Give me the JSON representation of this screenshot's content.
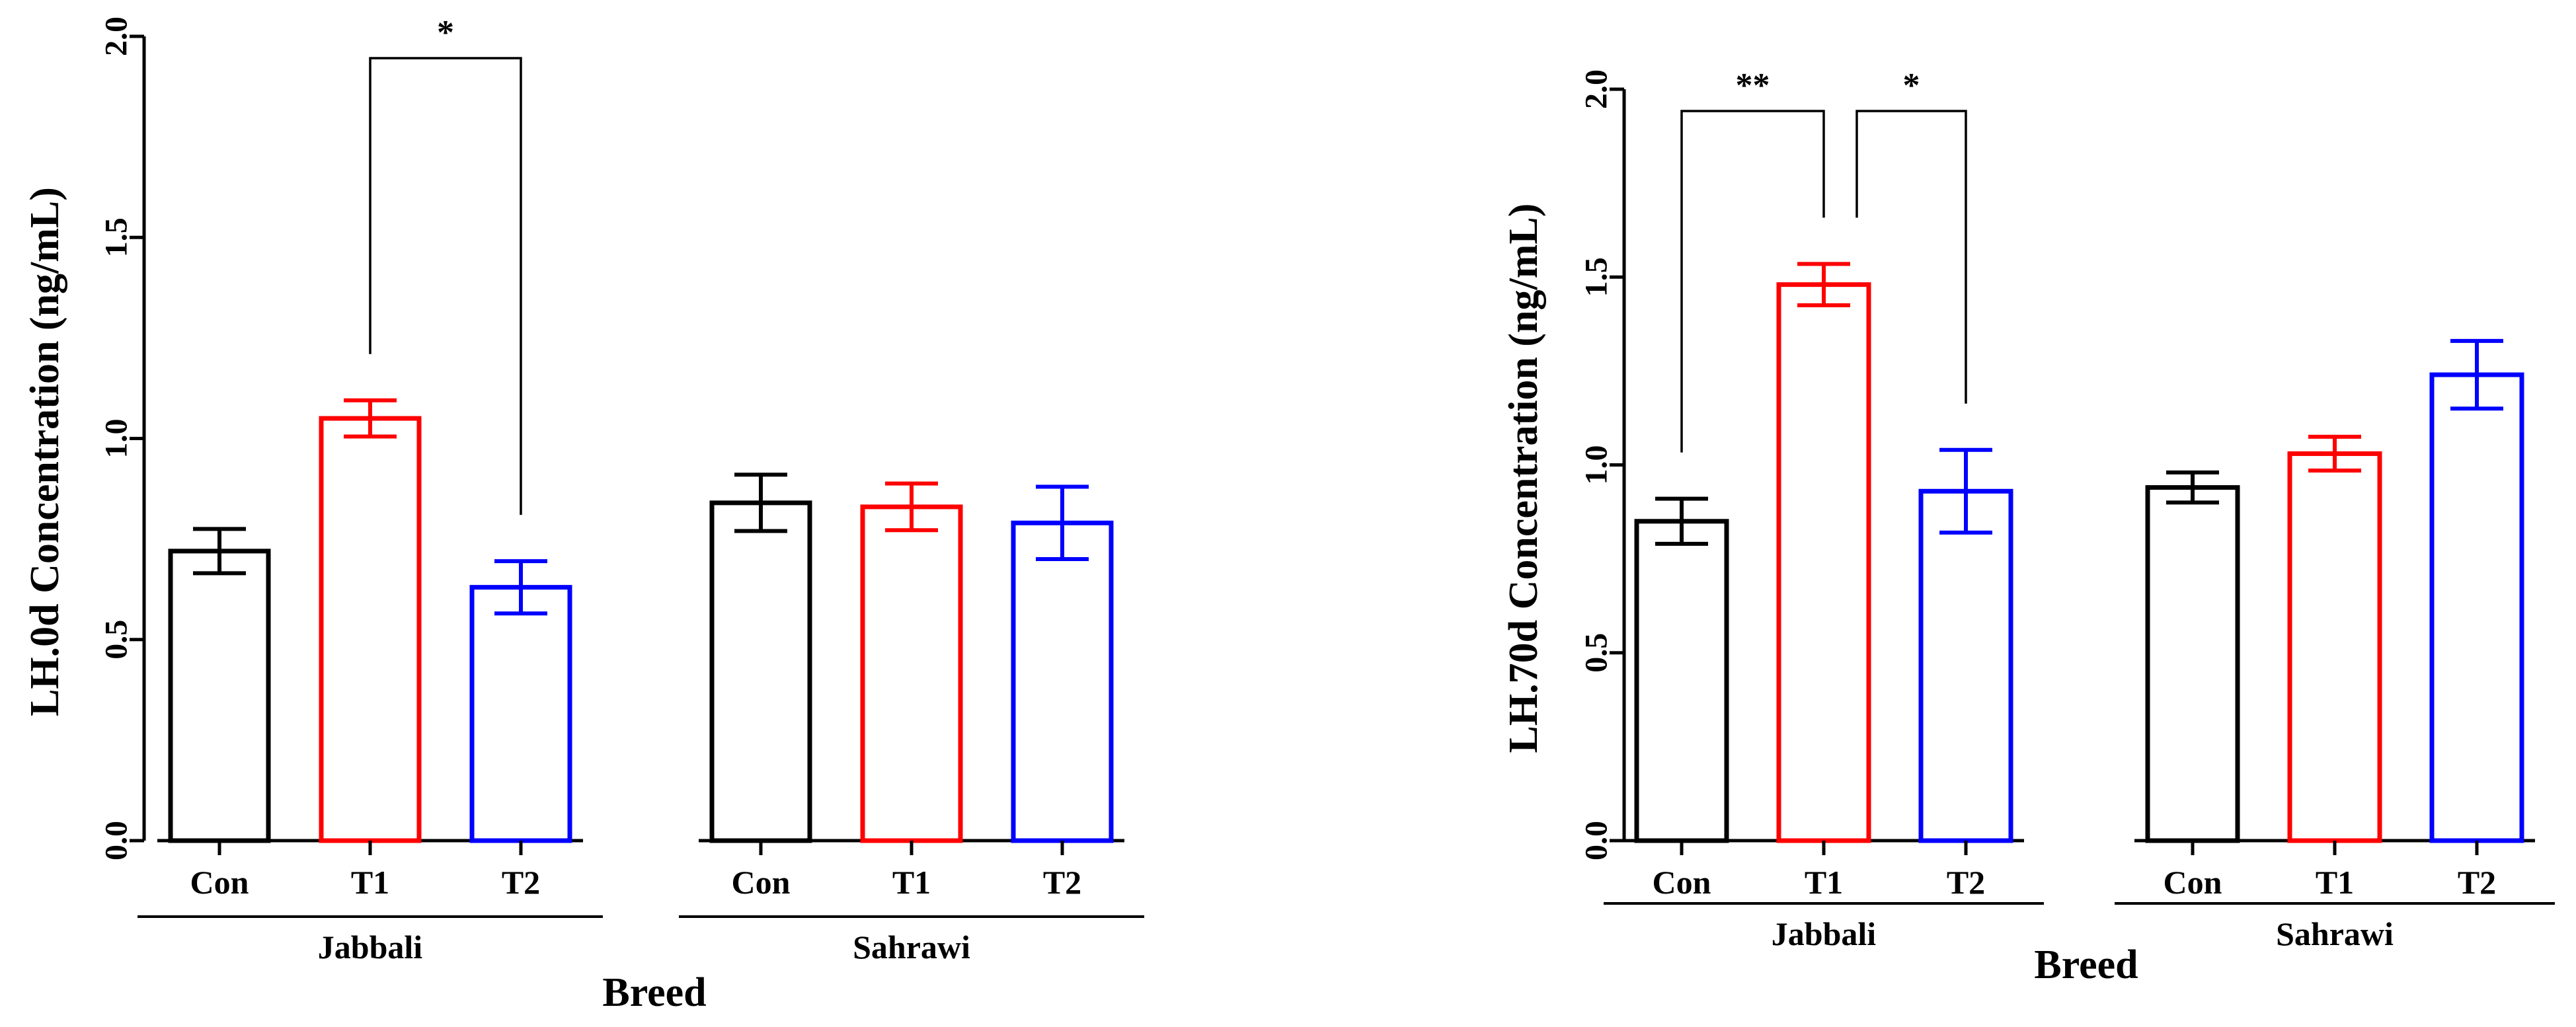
{
  "chart_data": [
    {
      "type": "bar",
      "ylabel": "LH.0d Concentration (ng/mL)",
      "xlabel": "Breed",
      "ylim": [
        0,
        2.0
      ],
      "yticks": [
        "0.0",
        "0.5",
        "1.0",
        "1.5",
        "2.0"
      ],
      "groups": [
        {
          "name": "Jabbali",
          "bars": [
            {
              "label": "Con",
              "value": 0.72,
              "err": 0.055,
              "color": "#000000"
            },
            {
              "label": "T1",
              "value": 1.05,
              "err": 0.045,
              "color": "#ff0000"
            },
            {
              "label": "T2",
              "value": 0.63,
              "err": 0.065,
              "color": "#0000ff"
            }
          ]
        },
        {
          "name": "Sahrawi",
          "bars": [
            {
              "label": "Con",
              "value": 0.84,
              "err": 0.07,
              "color": "#000000"
            },
            {
              "label": "T1",
              "value": 0.83,
              "err": 0.058,
              "color": "#ff0000"
            },
            {
              "label": "T2",
              "value": 0.79,
              "err": 0.09,
              "color": "#0000ff"
            }
          ]
        }
      ],
      "significance": [
        {
          "group": 0,
          "from": 1,
          "to": 2,
          "label": "*"
        }
      ]
    },
    {
      "type": "bar",
      "ylabel": "LH.70d Concentration (ng/mL)",
      "xlabel": "Breed",
      "ylim": [
        0,
        2.0
      ],
      "yticks": [
        "0.0",
        "0.5",
        "1.0",
        "1.5",
        "2.0"
      ],
      "groups": [
        {
          "name": "Jabbali",
          "bars": [
            {
              "label": "Con",
              "value": 0.85,
              "err": 0.06,
              "color": "#000000"
            },
            {
              "label": "T1",
              "value": 1.48,
              "err": 0.055,
              "color": "#ff0000"
            },
            {
              "label": "T2",
              "value": 0.93,
              "err": 0.11,
              "color": "#0000ff"
            }
          ]
        },
        {
          "name": "Sahrawi",
          "bars": [
            {
              "label": "Con",
              "value": 0.94,
              "err": 0.04,
              "color": "#000000"
            },
            {
              "label": "T1",
              "value": 1.03,
              "err": 0.045,
              "color": "#ff0000"
            },
            {
              "label": "T2",
              "value": 1.24,
              "err": 0.09,
              "color": "#0000ff"
            }
          ]
        }
      ],
      "significance": [
        {
          "group": 0,
          "from": 0,
          "to": 1,
          "label": "**"
        },
        {
          "group": 0,
          "from": 1,
          "to": 2,
          "label": "*"
        }
      ]
    }
  ]
}
